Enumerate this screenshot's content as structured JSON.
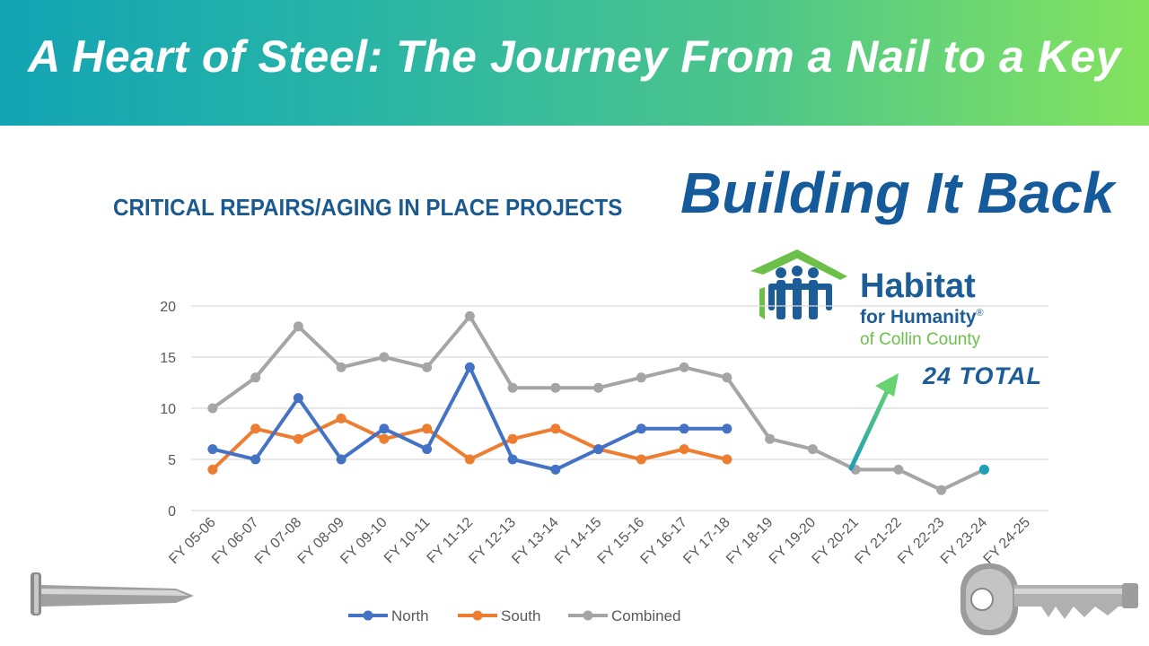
{
  "banner": {
    "title": "A Heart of Steel: The Journey From a Nail to a Key"
  },
  "slide": {
    "subtitle": "CRITICAL REPAIRS/AGING IN PLACE PROJECTS",
    "headline": "Building It Back",
    "total_note": "24  TOTAL"
  },
  "logo": {
    "name": "Habitat",
    "line2": "for Humanity",
    "registered": "®",
    "line3": "of Collin County"
  },
  "colors": {
    "north": "#4472c4",
    "south": "#ed7d31",
    "combined": "#a5a5a5",
    "arrow": "#2bb5a0",
    "title_blue": "#1b5a8f"
  },
  "icons": [
    "nail-image",
    "key-image",
    "habitat-logo-icon",
    "up-arrow-icon"
  ],
  "chart_data": {
    "type": "line",
    "categories": [
      "FY 05-06",
      "FY 06-07",
      "FY 07-08",
      "FY 08-09",
      "FY 09-10",
      "FY 10-11",
      "FY 11-12",
      "FY 12-13",
      "FY 13-14",
      "FY 14-15",
      "FY 15-16",
      "FY 16-17",
      "FY 17-18",
      "FY 18-19",
      "FY 19-20",
      "FY 20-21",
      "FY 21-22",
      "FY 22-23",
      "FY 23-24",
      "FY 24-25"
    ],
    "y_ticks": [
      0,
      5,
      10,
      15,
      20
    ],
    "ylim": [
      0,
      20
    ],
    "grid": "horizontal",
    "legend_position": "bottom",
    "series": [
      {
        "name": "North",
        "values": [
          6,
          5,
          11,
          5,
          8,
          6,
          14,
          5,
          4,
          6,
          8,
          8,
          8,
          null,
          null,
          null,
          null,
          null,
          null,
          null
        ]
      },
      {
        "name": "South",
        "values": [
          4,
          8,
          7,
          9,
          7,
          8,
          5,
          7,
          8,
          6,
          5,
          6,
          5,
          null,
          null,
          null,
          null,
          null,
          null,
          null
        ]
      },
      {
        "name": "Combined",
        "values": [
          10,
          13,
          18,
          14,
          15,
          14,
          19,
          12,
          12,
          12,
          13,
          14,
          13,
          7,
          6,
          4,
          4,
          2,
          4,
          null
        ]
      }
    ]
  }
}
